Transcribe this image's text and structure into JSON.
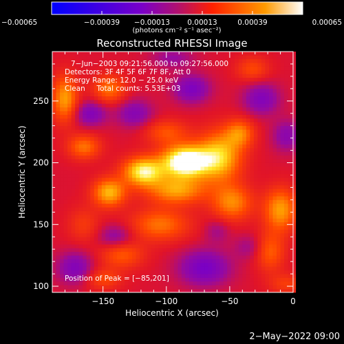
{
  "chart_data": {
    "type": "heatmap",
    "title": "Reconstructed RHESSI Image",
    "xlabel": "Heliocentric X (arcsec)",
    "ylabel": "Heliocentric Y (arcsec)",
    "xlim": [
      -190,
      0
    ],
    "ylim": [
      95,
      290
    ],
    "x_ticks": [
      -150,
      -100,
      -50,
      0
    ],
    "x_tick_labels": [
      "−150",
      "−100",
      "−50",
      "0"
    ],
    "y_ticks": [
      100,
      150,
      200,
      250
    ],
    "y_tick_labels": [
      "100",
      "150",
      "200",
      "250"
    ],
    "colorbar": {
      "range": [
        -0.00065,
        0.00065
      ],
      "tick_values": [
        -0.00065,
        -0.00039,
        -0.00013,
        0.00013,
        0.00039,
        0.00065
      ],
      "tick_labels": [
        "−0.00065",
        "−0.00039",
        "−0.00013",
        "0.00013",
        "0.00039",
        "0.00065"
      ],
      "units": "(photons cm⁻² s⁻¹ asec⁻²)",
      "colors": [
        "#0000ff",
        "#7a00c8",
        "#ff2000",
        "#ff9a00",
        "#ffffff"
      ]
    },
    "annotations": [
      "7−Jun−2003 09:21:56.000 to 09:27:56.000",
      "Detectors: 3F 4F 5F 6F 7F 8F, Att 0",
      "Energy Range: 12.0 − 25.0 keV",
      "Clean     Total counts: 5.53E+03"
    ],
    "peak_text": "Position of Peak = [−85,201]",
    "peak": {
      "x": -85,
      "y": 201
    },
    "sources": [
      {
        "x": -85,
        "y": 201,
        "sx": 13,
        "sy": 9,
        "value": 0.00065
      },
      {
        "x": -118,
        "y": 193,
        "sx": 11,
        "sy": 8,
        "value": 0.00048
      },
      {
        "x": -145,
        "y": 176,
        "sx": 9,
        "sy": 8,
        "value": 0.00036
      },
      {
        "x": -165,
        "y": 213,
        "sx": 9,
        "sy": 7,
        "value": 0.00024
      },
      {
        "x": -92,
        "y": 178,
        "sx": 16,
        "sy": 8,
        "value": 0.00032
      },
      {
        "x": -58,
        "y": 205,
        "sx": 12,
        "sy": 14,
        "value": 0.0004
      },
      {
        "x": -42,
        "y": 224,
        "sx": 8,
        "sy": 8,
        "value": 0.00025
      },
      {
        "x": -48,
        "y": 168,
        "sx": 11,
        "sy": 10,
        "value": 0.00028
      },
      {
        "x": -10,
        "y": 162,
        "sx": 9,
        "sy": 12,
        "value": 0.00032
      },
      {
        "x": -18,
        "y": 128,
        "sx": 8,
        "sy": 11,
        "value": 0.0002
      },
      {
        "x": -105,
        "y": 150,
        "sx": 16,
        "sy": 9,
        "value": 0.00024
      },
      {
        "x": -135,
        "y": 126,
        "sx": 12,
        "sy": 8,
        "value": 0.0002
      },
      {
        "x": -150,
        "y": 106,
        "sx": 10,
        "sy": 6,
        "value": 0.00016
      },
      {
        "x": -180,
        "y": 252,
        "sx": 7,
        "sy": 13,
        "value": 0.00032
      },
      {
        "x": -145,
        "y": 260,
        "sx": 9,
        "sy": 8,
        "value": 0.00024
      },
      {
        "x": -32,
        "y": 276,
        "sx": 9,
        "sy": 7,
        "value": 0.00016
      },
      {
        "x": -5,
        "y": 102,
        "sx": 10,
        "sy": 6,
        "value": 0.00013
      },
      {
        "x": -100,
        "y": 225,
        "sx": 12,
        "sy": 7,
        "value": 0.00018
      },
      {
        "x": -165,
        "y": 150,
        "sx": 9,
        "sy": 10,
        "value": 0.00012
      },
      {
        "x": -125,
        "y": 240,
        "sx": 10,
        "sy": 8,
        "value": -0.00018
      },
      {
        "x": -160,
        "y": 240,
        "sx": 9,
        "sy": 7,
        "value": -0.0002
      },
      {
        "x": -80,
        "y": 260,
        "sx": 10,
        "sy": 8,
        "value": -0.00022
      },
      {
        "x": -25,
        "y": 252,
        "sx": 10,
        "sy": 9,
        "value": -0.0002
      },
      {
        "x": -140,
        "y": 140,
        "sx": 10,
        "sy": 7,
        "value": -0.00016
      },
      {
        "x": -172,
        "y": 115,
        "sx": 10,
        "sy": 9,
        "value": -0.0002
      },
      {
        "x": -70,
        "y": 115,
        "sx": 14,
        "sy": 10,
        "value": -0.00024
      },
      {
        "x": -35,
        "y": 132,
        "sx": 8,
        "sy": 7,
        "value": -0.0001
      },
      {
        "x": -5,
        "y": 222,
        "sx": 8,
        "sy": 9,
        "value": -0.00016
      },
      {
        "x": -95,
        "y": 285,
        "sx": 12,
        "sy": 6,
        "value": -0.00012
      },
      {
        "x": -60,
        "y": 145,
        "sx": 7,
        "sy": 7,
        "value": -0.0001
      }
    ]
  },
  "footer": {
    "timestamp": "2−May−2022 09:00"
  }
}
